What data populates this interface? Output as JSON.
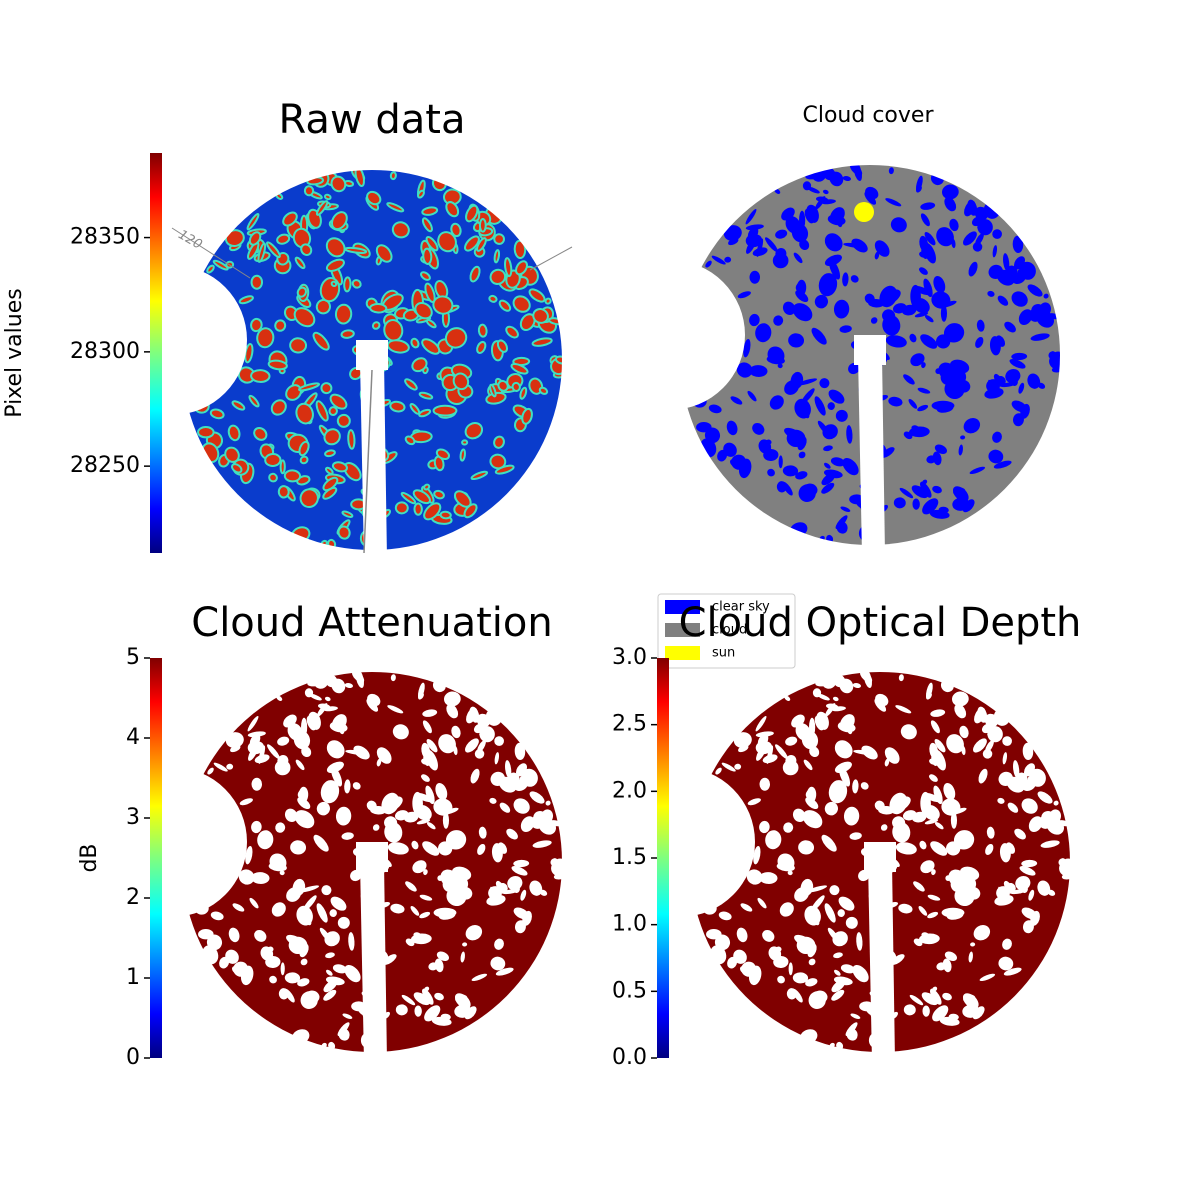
{
  "chart_data": [
    {
      "type": "image",
      "title": "Raw data",
      "colormap": "jet",
      "cbar_label": "Pixel values",
      "ylim": [
        28212,
        28387
      ],
      "yticks": [
        28250,
        28300,
        28350
      ],
      "annotations": [
        "120"
      ]
    },
    {
      "type": "classification",
      "title": "Cloud cover",
      "series": [
        {
          "name": "clear sky",
          "color": "#0000ff"
        },
        {
          "name": "cloud",
          "color": "#808080"
        },
        {
          "name": "sun",
          "color": "#ffff00"
        }
      ]
    },
    {
      "type": "image",
      "title": "Cloud Attenuation",
      "colormap": "jet",
      "cbar_label": "dB",
      "ylim": [
        0,
        5
      ],
      "yticks": [
        0,
        1,
        2,
        3,
        4,
        5
      ]
    },
    {
      "type": "image",
      "title": "Cloud Optical Depth",
      "colormap": "jet",
      "ylim": [
        0,
        3
      ],
      "yticks": [
        {
          "value": 0,
          "label": "0.0"
        },
        0.5,
        {
          "value": 1,
          "label": "1.0"
        },
        1.5,
        {
          "value": 2,
          "label": "2.0"
        },
        2.5,
        {
          "value": 3,
          "label": "3.0"
        }
      ]
    }
  ]
}
